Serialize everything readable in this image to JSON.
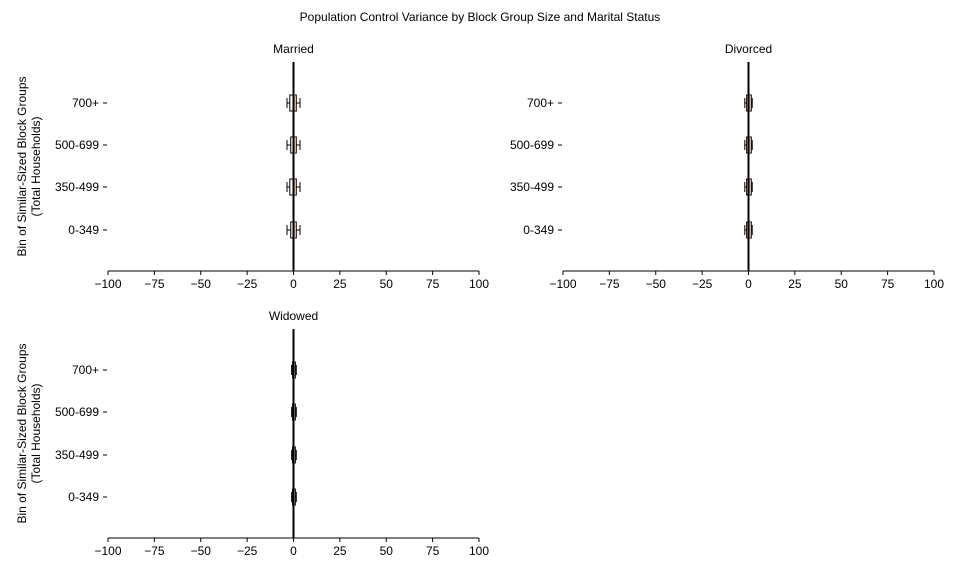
{
  "figure": {
    "suptitle": "Population Control Variance by Block Group Size and Marital Status"
  },
  "chart_data": [
    {
      "type": "boxplot",
      "orientation": "horizontal",
      "title": "Married",
      "xlabel": "",
      "ylabel": "Bin of Similar-Sized Block Groups\n(Total Households)",
      "xlim": [
        -100,
        100
      ],
      "xticks": [
        -100,
        -75,
        -50,
        -25,
        0,
        25,
        50,
        75,
        100
      ],
      "xtick_labels": [
        "−100",
        "−75",
        "−50",
        "−25",
        "0",
        "25",
        "50",
        "75",
        "100"
      ],
      "categories": [
        "0-349",
        "350-499",
        "500-699",
        "700+"
      ],
      "reference_line_x": 0,
      "boxes": [
        {
          "category": "0-349",
          "whisker_low": -3.5,
          "q1": -1.5,
          "median": 0.5,
          "q3": 1.5,
          "whisker_high": 3.5
        },
        {
          "category": "350-499",
          "whisker_low": -3.5,
          "q1": -2,
          "median": 0.5,
          "q3": 1.5,
          "whisker_high": 3.5
        },
        {
          "category": "500-699",
          "whisker_low": -3.5,
          "q1": -1.5,
          "median": 0.5,
          "q3": 1.5,
          "whisker_high": 3.5
        },
        {
          "category": "700+",
          "whisker_low": -3.5,
          "q1": -2,
          "median": 0.5,
          "q3": 1.5,
          "whisker_high": 3.5
        }
      ],
      "colors": {
        "box_edge": "#000000",
        "median": "#e8a07a",
        "reference": "#000000"
      }
    },
    {
      "type": "boxplot",
      "orientation": "horizontal",
      "title": "Divorced",
      "xlabel": "",
      "ylabel": "",
      "xlim": [
        -100,
        100
      ],
      "xticks": [
        -100,
        -75,
        -50,
        -25,
        0,
        25,
        50,
        75,
        100
      ],
      "xtick_labels": [
        "−100",
        "−75",
        "−50",
        "−25",
        "0",
        "25",
        "50",
        "75",
        "100"
      ],
      "categories": [
        "0-349",
        "350-499",
        "500-699",
        "700+"
      ],
      "reference_line_x": 0,
      "boxes": [
        {
          "category": "0-349",
          "whisker_low": -2,
          "q1": -1,
          "median": 0.5,
          "q3": 1.5,
          "whisker_high": 2
        },
        {
          "category": "350-499",
          "whisker_low": -2,
          "q1": -1,
          "median": 0.5,
          "q3": 1.5,
          "whisker_high": 2
        },
        {
          "category": "500-699",
          "whisker_low": -2,
          "q1": -1,
          "median": 0.5,
          "q3": 1.5,
          "whisker_high": 2
        },
        {
          "category": "700+",
          "whisker_low": -2,
          "q1": -1,
          "median": 0.5,
          "q3": 1.5,
          "whisker_high": 2
        }
      ],
      "colors": {
        "box_edge": "#000000",
        "median": "#e8a07a",
        "reference": "#000000"
      }
    },
    {
      "type": "boxplot",
      "orientation": "horizontal",
      "title": "Widowed",
      "xlabel": "",
      "ylabel": "Bin of Similar-Sized Block Groups\n(Total Households)",
      "xlim": [
        -100,
        100
      ],
      "xticks": [
        -100,
        -75,
        -50,
        -25,
        0,
        25,
        50,
        75,
        100
      ],
      "xtick_labels": [
        "−100",
        "−75",
        "−50",
        "−25",
        "0",
        "25",
        "50",
        "75",
        "100"
      ],
      "categories": [
        "0-349",
        "350-499",
        "500-699",
        "700+"
      ],
      "reference_line_x": 0,
      "boxes": [
        {
          "category": "0-349",
          "whisker_low": -1,
          "q1": -0.5,
          "median": 0.3,
          "q3": 1,
          "whisker_high": 1.5
        },
        {
          "category": "350-499",
          "whisker_low": -1,
          "q1": -0.5,
          "median": 0.3,
          "q3": 1,
          "whisker_high": 1.5
        },
        {
          "category": "500-699",
          "whisker_low": -1,
          "q1": -0.5,
          "median": 0.3,
          "q3": 1,
          "whisker_high": 1.5
        },
        {
          "category": "700+",
          "whisker_low": -1,
          "q1": -0.5,
          "median": 0.3,
          "q3": 1,
          "whisker_high": 1.5
        }
      ],
      "colors": {
        "box_edge": "#000000",
        "median": "#e8a07a",
        "reference": "#000000"
      }
    }
  ]
}
